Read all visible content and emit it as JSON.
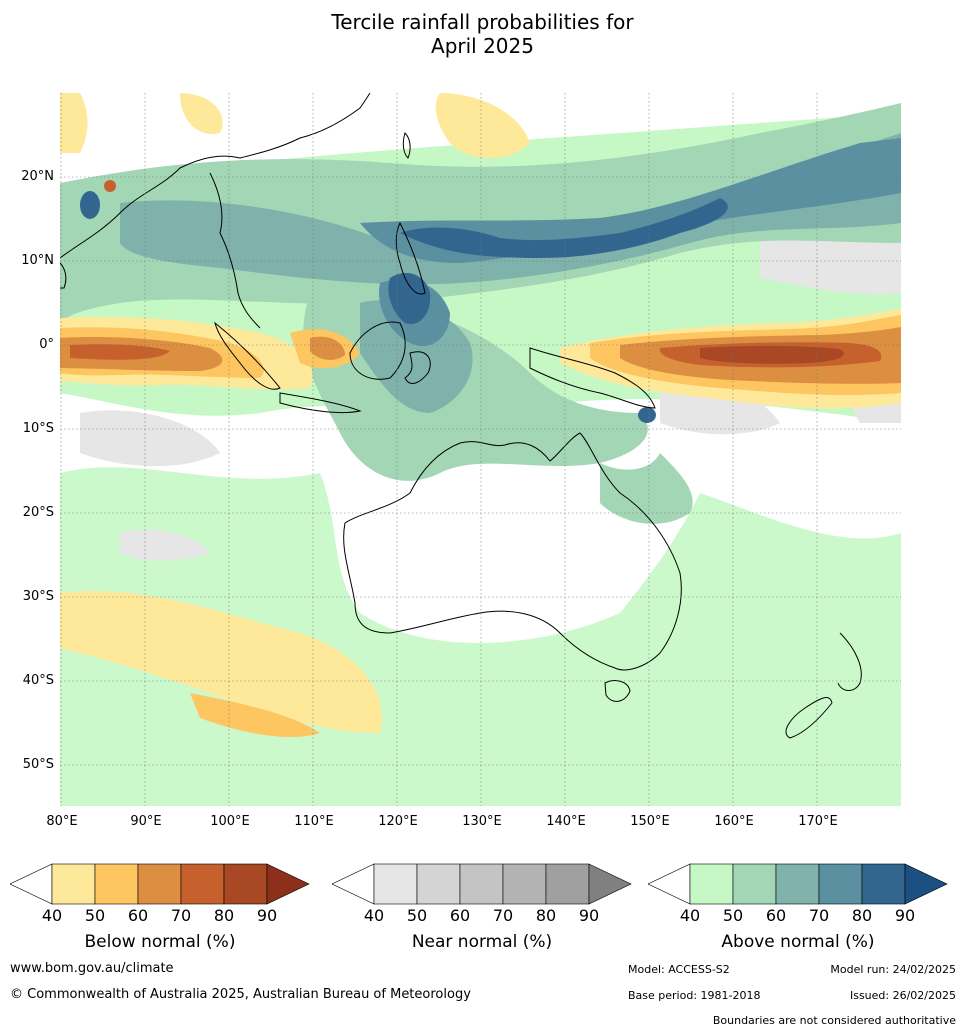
{
  "title_line1": "Tercile rainfall probabilities for",
  "title_line2": "April 2025",
  "lat_labels": [
    "20°N",
    "10°N",
    "0°",
    "10°S",
    "20°S",
    "30°S",
    "40°S",
    "50°S"
  ],
  "lon_labels": [
    "80°E",
    "90°E",
    "100°E",
    "110°E",
    "120°E",
    "130°E",
    "140°E",
    "150°E",
    "160°E",
    "170°E"
  ],
  "colorbars": {
    "below": {
      "label": "Below normal (%)",
      "ticks": [
        "40",
        "50",
        "60",
        "70",
        "80",
        "90"
      ],
      "colors": [
        "#ffffff",
        "#fee99a",
        "#fdc660",
        "#dc8f40",
        "#c6612e",
        "#a94824",
        "#8c301c"
      ]
    },
    "near": {
      "label": "Near normal (%)",
      "ticks": [
        "40",
        "50",
        "60",
        "70",
        "80",
        "90"
      ],
      "colors": [
        "#ffffff",
        "#e6e6e6",
        "#d4d4d4",
        "#c4c4c4",
        "#b3b3b3",
        "#a0a0a0",
        "#808080"
      ]
    },
    "above": {
      "label": "Above normal (%)",
      "ticks": [
        "40",
        "50",
        "60",
        "70",
        "80",
        "90"
      ],
      "colors": [
        "#ffffff",
        "#c6f8c6",
        "#a3d6b5",
        "#7fb2aa",
        "#5b90a0",
        "#33668f",
        "#1c4f82"
      ]
    }
  },
  "footer": {
    "website": "www.bom.gov.au/climate",
    "copyright": "© Commonwealth of Australia 2025, Australian Bureau of Meteorology",
    "model": "Model: ACCESS-S2",
    "model_run": "Model run: 24/02/2025",
    "base_period": "Base period: 1981-2018",
    "issued": "Issued: 26/02/2025",
    "disclaimer": "Boundaries are not considered authoritative"
  }
}
